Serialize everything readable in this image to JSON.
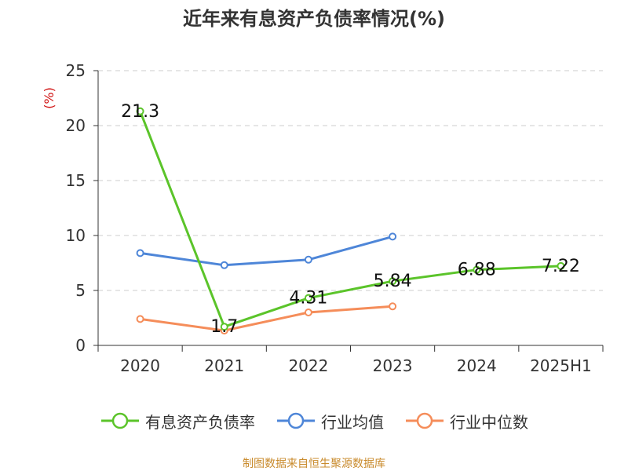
{
  "title": "近年来有息资产负债率情况(%)",
  "source": "制图数据来自恒生聚源数据库",
  "chart_data": {
    "type": "line",
    "title": "近年来有息资产负债率情况(%)",
    "ylabel": "(%)",
    "xlabel": "",
    "categories": [
      "2020",
      "2021",
      "2022",
      "2023",
      "2024",
      "2025H1"
    ],
    "ylim": [
      0,
      25
    ],
    "yticks": [
      "0",
      "5",
      "10",
      "15",
      "20",
      "25"
    ],
    "grid": true,
    "legend_position": "bottom",
    "series": [
      {
        "name": "有息资产负债率",
        "color": "#5BC42A",
        "values": [
          21.3,
          1.7,
          4.31,
          5.84,
          6.88,
          7.22
        ],
        "labels": [
          "21.3",
          "1.7",
          "4.31",
          "5.84",
          "6.88",
          "7.22"
        ]
      },
      {
        "name": "行业均值",
        "color": "#4E86D8",
        "values": [
          8.4,
          7.3,
          7.8,
          9.9,
          null,
          null
        ],
        "labels": []
      },
      {
        "name": "行业中位数",
        "color": "#F58D5A",
        "values": [
          2.4,
          1.35,
          3.0,
          3.55,
          null,
          null
        ],
        "labels": []
      }
    ]
  }
}
